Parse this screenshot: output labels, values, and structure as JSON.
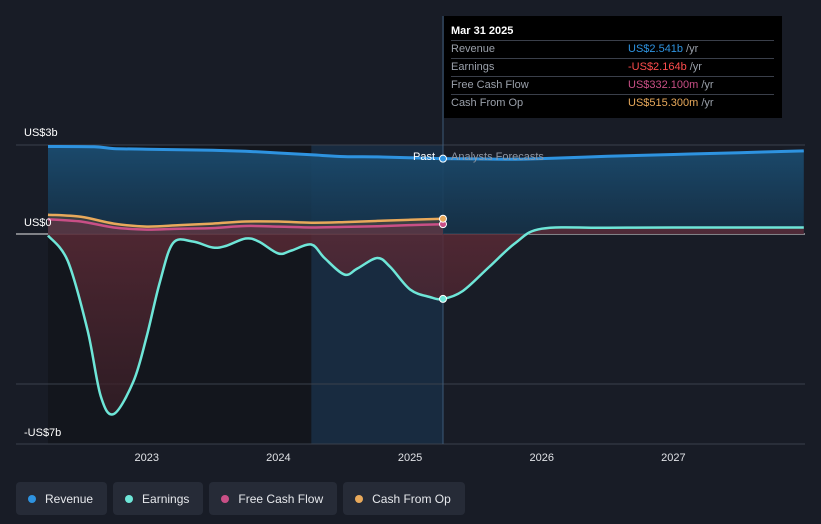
{
  "colors": {
    "revenue": "#2e93e0",
    "earnings": "#6ee6d8",
    "fcf": "#c94f86",
    "cfo": "#e8a95b"
  },
  "labels": {
    "past": "Past",
    "forecast": "Analysts Forecasts"
  },
  "tooltip": {
    "date": "Mar 31 2025",
    "rows": [
      {
        "label": "Revenue",
        "value": "US$2.541b",
        "unit": "/yr"
      },
      {
        "label": "Earnings",
        "value": "-US$2.164b",
        "unit": "/yr"
      },
      {
        "label": "Free Cash Flow",
        "value": "US$332.100m",
        "unit": "/yr"
      },
      {
        "label": "Cash From Op",
        "value": "US$515.300m",
        "unit": "/yr"
      }
    ]
  },
  "legend": [
    {
      "name": "Revenue",
      "icon": "revenue-dot-icon"
    },
    {
      "name": "Earnings",
      "icon": "earnings-dot-icon"
    },
    {
      "name": "Free Cash Flow",
      "icon": "fcf-dot-icon"
    },
    {
      "name": "Cash From Op",
      "icon": "cfo-dot-icon"
    }
  ],
  "chart_data": {
    "type": "area",
    "units": "USD billions",
    "ylim": [
      -7,
      3
    ],
    "xlim": [
      2022.25,
      2027.99
    ],
    "y_ticks": [
      {
        "value": 3,
        "label": "US$3b"
      },
      {
        "value": 0,
        "label": "US$0"
      },
      {
        "value": -7,
        "label": "-US$7b"
      }
    ],
    "x_ticks": [
      {
        "value": 2023,
        "label": "2023"
      },
      {
        "value": 2024,
        "label": "2024"
      },
      {
        "value": 2025,
        "label": "2025"
      },
      {
        "value": 2026,
        "label": "2026"
      },
      {
        "value": 2027,
        "label": "2027"
      }
    ],
    "forecast_start": 2025.25,
    "grid": true,
    "series": [
      {
        "name": "Revenue",
        "key": "revenue",
        "points": [
          [
            2022.25,
            2.95
          ],
          [
            2022.6,
            2.94
          ],
          [
            2022.75,
            2.88
          ],
          [
            2023.0,
            2.86
          ],
          [
            2023.25,
            2.84
          ],
          [
            2023.5,
            2.82
          ],
          [
            2023.75,
            2.79
          ],
          [
            2024.0,
            2.73
          ],
          [
            2024.25,
            2.67
          ],
          [
            2024.5,
            2.61
          ],
          [
            2024.75,
            2.6
          ],
          [
            2025.0,
            2.57
          ],
          [
            2025.25,
            2.54
          ],
          [
            2025.5,
            2.53
          ],
          [
            2025.75,
            2.52
          ],
          [
            2026.0,
            2.54
          ],
          [
            2026.5,
            2.62
          ],
          [
            2027.0,
            2.68
          ],
          [
            2027.5,
            2.74
          ],
          [
            2027.99,
            2.8
          ]
        ]
      },
      {
        "name": "Earnings",
        "key": "earnings",
        "points": [
          [
            2022.25,
            -0.05
          ],
          [
            2022.4,
            -0.9
          ],
          [
            2022.55,
            -3.2
          ],
          [
            2022.65,
            -5.4
          ],
          [
            2022.75,
            -6.0
          ],
          [
            2022.9,
            -4.9
          ],
          [
            2023.0,
            -3.4
          ],
          [
            2023.1,
            -1.6
          ],
          [
            2023.2,
            -0.3
          ],
          [
            2023.35,
            -0.25
          ],
          [
            2023.5,
            -0.45
          ],
          [
            2023.6,
            -0.4
          ],
          [
            2023.75,
            -0.15
          ],
          [
            2023.85,
            -0.25
          ],
          [
            2024.0,
            -0.65
          ],
          [
            2024.1,
            -0.55
          ],
          [
            2024.25,
            -0.35
          ],
          [
            2024.35,
            -0.8
          ],
          [
            2024.5,
            -1.35
          ],
          [
            2024.6,
            -1.15
          ],
          [
            2024.75,
            -0.8
          ],
          [
            2024.85,
            -1.1
          ],
          [
            2025.0,
            -1.85
          ],
          [
            2025.15,
            -2.1
          ],
          [
            2025.25,
            -2.164
          ],
          [
            2025.4,
            -1.9
          ],
          [
            2025.6,
            -1.1
          ],
          [
            2025.8,
            -0.3
          ],
          [
            2026.0,
            0.18
          ],
          [
            2026.5,
            0.21
          ],
          [
            2027.0,
            0.22
          ],
          [
            2027.99,
            0.22
          ]
        ]
      },
      {
        "name": "Free Cash Flow",
        "key": "fcf",
        "points": [
          [
            2022.25,
            0.5
          ],
          [
            2022.5,
            0.42
          ],
          [
            2022.75,
            0.22
          ],
          [
            2023.0,
            0.15
          ],
          [
            2023.25,
            0.18
          ],
          [
            2023.5,
            0.2
          ],
          [
            2023.75,
            0.27
          ],
          [
            2024.0,
            0.25
          ],
          [
            2024.25,
            0.22
          ],
          [
            2024.5,
            0.24
          ],
          [
            2024.75,
            0.26
          ],
          [
            2025.0,
            0.3
          ],
          [
            2025.25,
            0.332
          ]
        ]
      },
      {
        "name": "Cash From Op",
        "key": "cfo",
        "points": [
          [
            2022.25,
            0.65
          ],
          [
            2022.5,
            0.58
          ],
          [
            2022.75,
            0.35
          ],
          [
            2023.0,
            0.25
          ],
          [
            2023.25,
            0.3
          ],
          [
            2023.5,
            0.35
          ],
          [
            2023.75,
            0.42
          ],
          [
            2024.0,
            0.42
          ],
          [
            2024.25,
            0.38
          ],
          [
            2024.5,
            0.4
          ],
          [
            2024.75,
            0.44
          ],
          [
            2025.0,
            0.48
          ],
          [
            2025.25,
            0.515
          ]
        ]
      }
    ]
  }
}
